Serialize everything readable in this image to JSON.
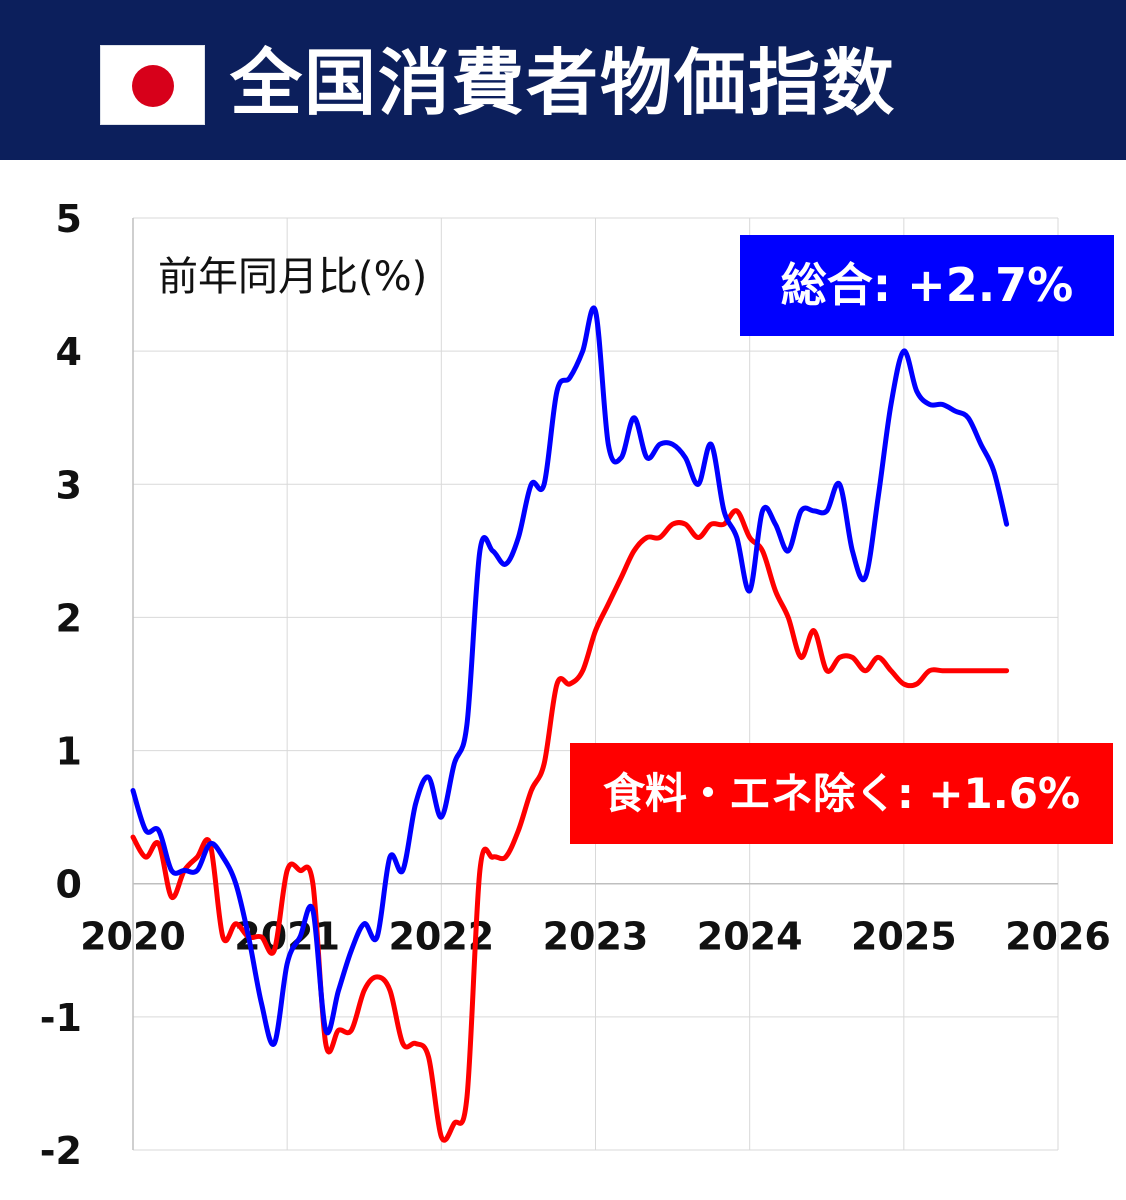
{
  "header": {
    "title": "全国消費者物価指数",
    "flag_icon": "japan-flag-icon",
    "bg_color": "#0c1f5c"
  },
  "chart_data": {
    "type": "line",
    "title": "全国消費者物価指数",
    "ylabel": "前年同月比(%)",
    "xlabel": "",
    "xlim": [
      "2020-01",
      "2026-01"
    ],
    "ylim": [
      -2,
      5
    ],
    "x_ticks": [
      "2020",
      "2021",
      "2022",
      "2023",
      "2024",
      "2025",
      "2026"
    ],
    "y_ticks": [
      "-2",
      "-1",
      "0",
      "1",
      "2",
      "3",
      "4",
      "5"
    ],
    "grid": true,
    "x": [
      "2020-01",
      "2020-02",
      "2020-03",
      "2020-04",
      "2020-05",
      "2020-06",
      "2020-07",
      "2020-08",
      "2020-09",
      "2020-10",
      "2020-11",
      "2020-12",
      "2021-01",
      "2021-02",
      "2021-03",
      "2021-04",
      "2021-05",
      "2021-06",
      "2021-07",
      "2021-08",
      "2021-09",
      "2021-10",
      "2021-11",
      "2021-12",
      "2022-01",
      "2022-02",
      "2022-03",
      "2022-04",
      "2022-05",
      "2022-06",
      "2022-07",
      "2022-08",
      "2022-09",
      "2022-10",
      "2022-11",
      "2022-12",
      "2023-01",
      "2023-02",
      "2023-03",
      "2023-04",
      "2023-05",
      "2023-06",
      "2023-07",
      "2023-08",
      "2023-09",
      "2023-10",
      "2023-11",
      "2023-12",
      "2024-01",
      "2024-02",
      "2024-03",
      "2024-04",
      "2024-05",
      "2024-06",
      "2024-07",
      "2024-08",
      "2024-09",
      "2024-10",
      "2024-11",
      "2024-12",
      "2025-01",
      "2025-02",
      "2025-03",
      "2025-04",
      "2025-05",
      "2025-06",
      "2025-07",
      "2025-08",
      "2025-09"
    ],
    "series": [
      {
        "name": "総合",
        "label": "総合: +2.7%",
        "color": "#0000ff",
        "values": [
          0.7,
          0.4,
          0.4,
          0.1,
          0.1,
          0.1,
          0.3,
          0.2,
          0.0,
          -0.4,
          -0.9,
          -1.2,
          -0.6,
          -0.4,
          -0.2,
          -1.1,
          -0.8,
          -0.5,
          -0.3,
          -0.4,
          0.2,
          0.1,
          0.6,
          0.8,
          0.5,
          0.9,
          1.2,
          2.5,
          2.5,
          2.4,
          2.6,
          3.0,
          3.0,
          3.7,
          3.8,
          4.0,
          4.3,
          3.3,
          3.2,
          3.5,
          3.2,
          3.3,
          3.3,
          3.2,
          3.0,
          3.3,
          2.8,
          2.6,
          2.2,
          2.8,
          2.7,
          2.5,
          2.8,
          2.8,
          2.8,
          3.0,
          2.5,
          2.3,
          2.9,
          3.6,
          4.0,
          3.7,
          3.6,
          3.6,
          3.55,
          3.5,
          3.3,
          3.1,
          2.7
        ]
      },
      {
        "name": "食料・エネ除く",
        "label": "食料・エネ除く: +1.6%",
        "color": "#ff0000",
        "values": [
          0.35,
          0.2,
          0.3,
          -0.1,
          0.1,
          0.2,
          0.3,
          -0.4,
          -0.3,
          -0.4,
          -0.4,
          -0.5,
          0.1,
          0.1,
          0.0,
          -1.2,
          -1.1,
          -1.1,
          -0.8,
          -0.7,
          -0.8,
          -1.2,
          -1.2,
          -1.3,
          -1.9,
          -1.8,
          -1.6,
          0.1,
          0.2,
          0.2,
          0.4,
          0.7,
          0.9,
          1.5,
          1.5,
          1.6,
          1.9,
          2.1,
          2.3,
          2.5,
          2.6,
          2.6,
          2.7,
          2.7,
          2.6,
          2.7,
          2.7,
          2.8,
          2.6,
          2.5,
          2.2,
          2.0,
          1.7,
          1.9,
          1.6,
          1.7,
          1.7,
          1.6,
          1.7,
          1.6,
          1.5,
          1.5,
          1.6,
          1.6,
          1.6,
          1.6,
          1.6,
          1.6,
          1.6
        ]
      }
    ]
  }
}
